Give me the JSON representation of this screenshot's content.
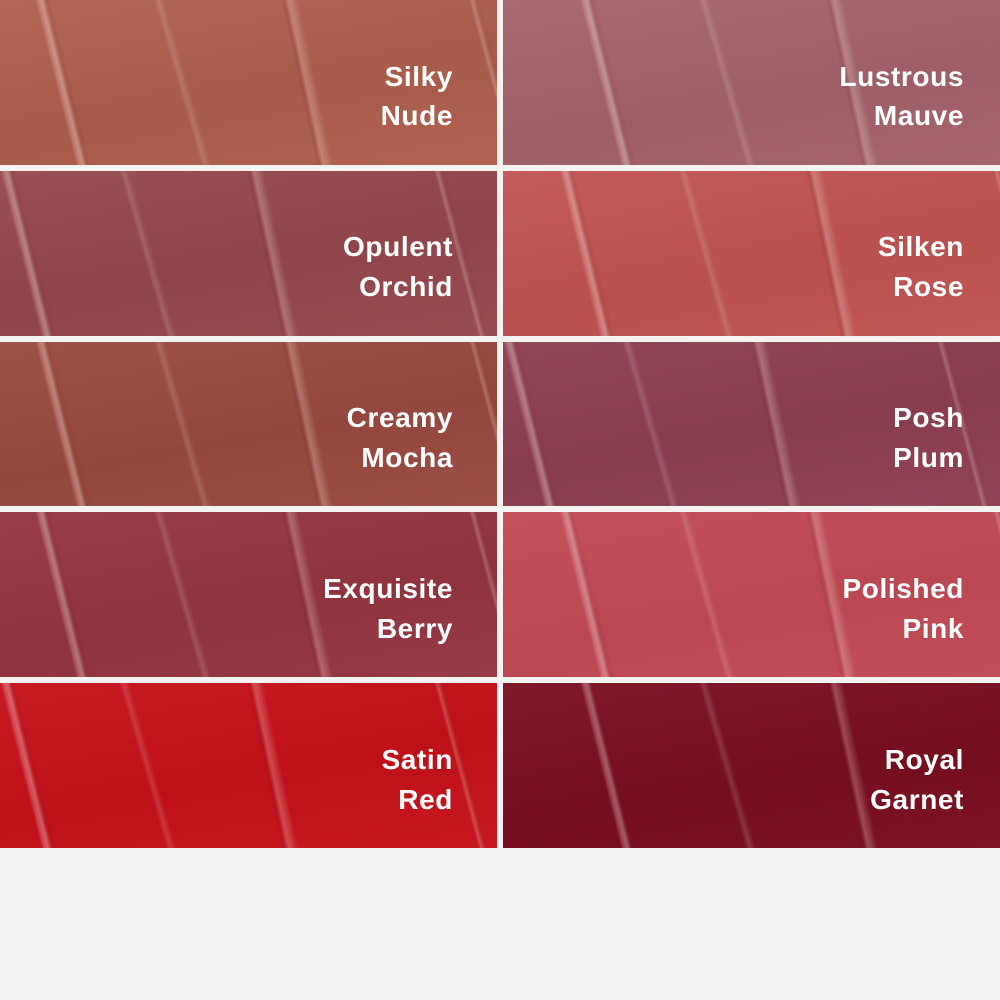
{
  "page": {
    "background": "#f4f3f2",
    "gap_color": "#f5f3f1",
    "text_color": "#ffffff"
  },
  "shades": [
    {
      "name": "Silky Nude",
      "line1": "Silky",
      "line2": "Nude",
      "color": "#b05f4c"
    },
    {
      "name": "Lustrous Mauve",
      "line1": "Lustrous",
      "line2": "Mauve",
      "color": "#a5626b"
    },
    {
      "name": "Opulent Orchid",
      "line1": "Opulent",
      "line2": "Orchid",
      "color": "#96484d"
    },
    {
      "name": "Silken Rose",
      "line1": "Silken",
      "line2": "Rose",
      "color": "#c05452"
    },
    {
      "name": "Creamy Mocha",
      "line1": "Creamy",
      "line2": "Mocha",
      "color": "#9a4a40"
    },
    {
      "name": "Posh Plum",
      "line1": "Posh",
      "line2": "Plum",
      "color": "#8e3f52"
    },
    {
      "name": "Exquisite Berry",
      "line1": "Exquisite",
      "line2": "Berry",
      "color": "#953541"
    },
    {
      "name": "Polished Pink",
      "line1": "Polished",
      "line2": "Pink",
      "color": "#c24a55"
    },
    {
      "name": "Satin Red",
      "line1": "Satin",
      "line2": "Red",
      "color": "#c6111a"
    },
    {
      "name": "Royal Garnet",
      "line1": "Royal",
      "line2": "Garnet",
      "color": "#7a0e20"
    }
  ]
}
